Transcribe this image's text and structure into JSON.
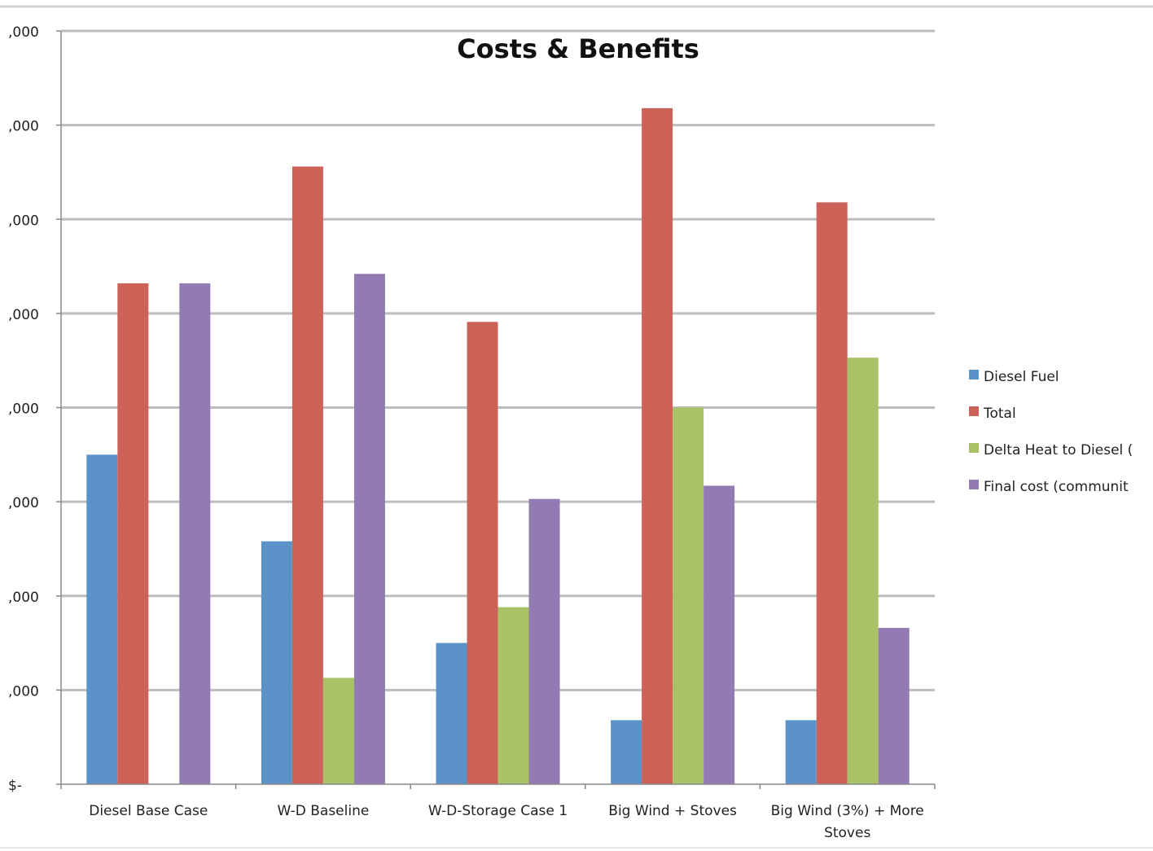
{
  "chart_data": {
    "type": "bar",
    "title": "Costs & Benefits",
    "xlabel": "",
    "ylabel": "",
    "ylim": [
      0,
      8
    ],
    "ytick_labels": [
      "$-",
      ",000",
      ",000",
      ",000",
      ",000",
      ",000",
      ",000",
      ",000",
      ",000"
    ],
    "categories": [
      [
        "Diesel Base Case"
      ],
      [
        "W-D Baseline"
      ],
      [
        "W-D-Storage Case 1"
      ],
      [
        "Big Wind + Stoves"
      ],
      [
        "Big Wind (3%) + More",
        "Stoves"
      ]
    ],
    "grid": true,
    "legend_position": "right",
    "series": [
      {
        "name": "Diesel Fuel",
        "color": "#5b93c8",
        "values": [
          3.5,
          2.58,
          1.5,
          0.68,
          0.68
        ]
      },
      {
        "name": "Total",
        "color": "#cc6258",
        "values": [
          5.32,
          6.56,
          4.91,
          7.18,
          6.18
        ]
      },
      {
        "name": "Delta Heat to Diesel (",
        "color": "#a9c266",
        "values": [
          0,
          1.13,
          1.88,
          4.0,
          4.53
        ]
      },
      {
        "name": "Final cost (communit",
        "color": "#927ab2",
        "values": [
          5.32,
          5.42,
          3.03,
          3.17,
          1.66
        ]
      }
    ]
  }
}
